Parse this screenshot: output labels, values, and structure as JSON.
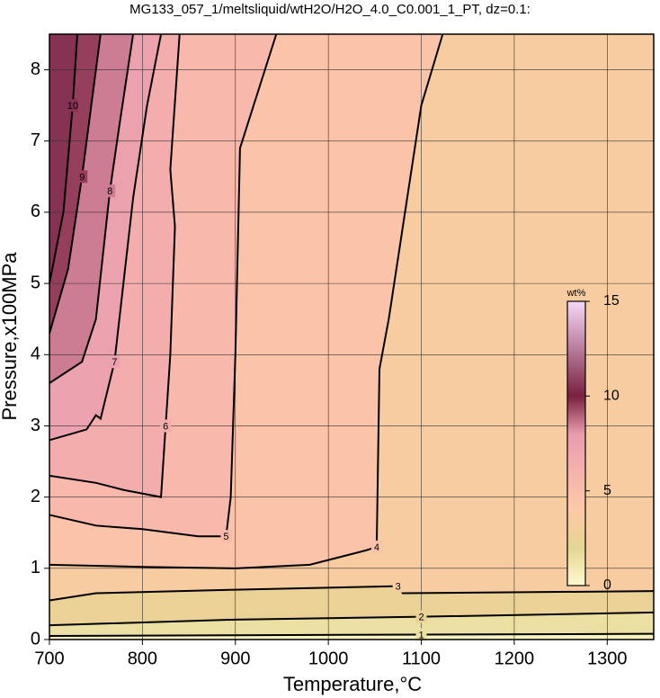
{
  "chart_data": {
    "type": "contour",
    "title": "MG133_057_1/meltsliquid/wtH2O/H2O_4.0_C0.001_1_PT, dz=0.1:",
    "x_label": "Temperature,°C",
    "y_label": "Pressure,x100MPa",
    "xlim": [
      700,
      1350
    ],
    "xticks": [
      700,
      800,
      900,
      1000,
      1100,
      1200,
      1300
    ],
    "ylim": [
      0,
      8.5
    ],
    "yticks": [
      0,
      1,
      2,
      3,
      4,
      5,
      6,
      7,
      8
    ],
    "grid": true,
    "colorbar": {
      "label": "wt%",
      "lim": [
        0,
        15
      ],
      "ticks": [
        0,
        5,
        10,
        15
      ],
      "colormap": [
        {
          "value": 0,
          "color": "#fffbd0"
        },
        {
          "value": 2,
          "color": "#e4d592"
        },
        {
          "value": 4,
          "color": "#fdc9a5"
        },
        {
          "value": 6,
          "color": "#f6b2ad"
        },
        {
          "value": 8,
          "color": "#e89cae"
        },
        {
          "value": 10,
          "color": "#7a2040"
        },
        {
          "value": 15,
          "color": "#f6d8f8"
        }
      ]
    },
    "series": [
      {
        "level": 1,
        "x": [
          700,
          900,
          1100,
          1350
        ],
        "y": [
          0.05,
          0.06,
          0.07,
          0.08
        ]
      },
      {
        "level": 2,
        "x": [
          700,
          900,
          1100,
          1350
        ],
        "y": [
          0.2,
          0.28,
          0.32,
          0.38
        ]
      },
      {
        "level": 3,
        "x": [
          700,
          750,
          900,
          1075,
          1080,
          1350
        ],
        "y": [
          0.55,
          0.65,
          0.7,
          0.75,
          0.65,
          0.68
        ]
      },
      {
        "level": 4,
        "x": [
          700,
          800,
          900,
          980,
          1040,
          1052,
          1055,
          1065,
          1100,
          1123
        ],
        "y": [
          1.05,
          1.02,
          1.0,
          1.05,
          1.25,
          1.3,
          3.8,
          4.5,
          7.5,
          8.5
        ]
      },
      {
        "level": 5,
        "x": [
          700,
          750,
          800,
          860,
          890,
          895,
          900,
          905,
          944
        ],
        "y": [
          1.75,
          1.6,
          1.55,
          1.45,
          1.45,
          2.0,
          4.0,
          6.9,
          8.5
        ]
      },
      {
        "level": 6,
        "x": [
          700,
          750,
          780,
          820,
          825,
          830,
          835,
          830,
          840
        ],
        "y": [
          2.3,
          2.2,
          2.1,
          2.0,
          3.0,
          4.0,
          5.8,
          6.6,
          8.5
        ]
      },
      {
        "level": 7,
        "x": [
          700,
          740,
          750,
          755,
          770,
          790,
          805,
          820
        ],
        "y": [
          2.8,
          2.95,
          3.15,
          3.1,
          3.9,
          6.2,
          7.5,
          8.5
        ]
      },
      {
        "level": 8,
        "x": [
          700,
          735,
          750,
          765,
          775,
          790
        ],
        "y": [
          3.6,
          3.9,
          4.5,
          6.3,
          7.2,
          8.5
        ]
      },
      {
        "level": 9,
        "x": [
          700,
          720,
          735,
          745,
          755
        ],
        "y": [
          4.3,
          5.2,
          6.5,
          7.5,
          8.5
        ]
      },
      {
        "level": 10,
        "x": [
          700,
          715,
          725,
          730
        ],
        "y": [
          5.0,
          6.0,
          7.5,
          8.5
        ]
      }
    ]
  }
}
